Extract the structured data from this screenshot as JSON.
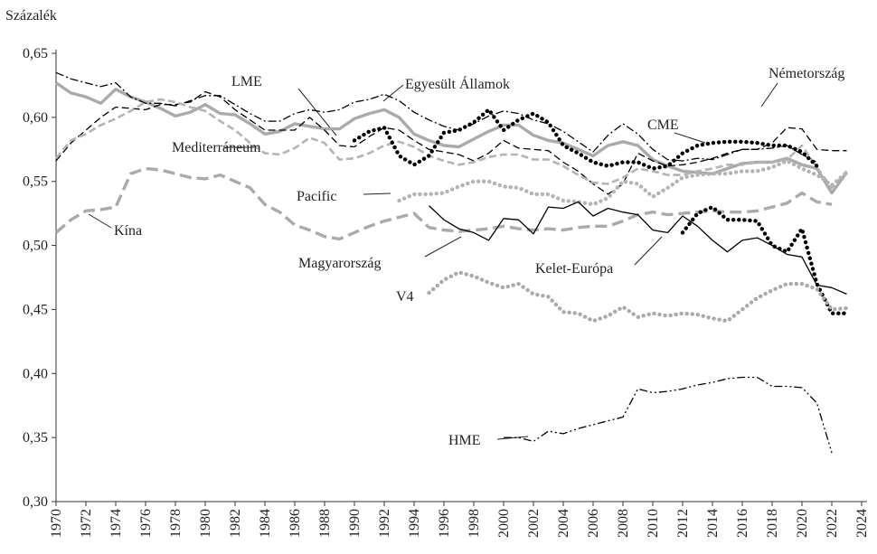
{
  "chart_data": {
    "type": "line",
    "y_label": "Százalék",
    "xlim": [
      1970,
      2024
    ],
    "ylim": [
      0.3,
      0.65
    ],
    "xticks": [
      1970,
      1972,
      1974,
      1976,
      1978,
      1980,
      1982,
      1984,
      1986,
      1988,
      1990,
      1992,
      1994,
      1996,
      1998,
      2000,
      2002,
      2004,
      2006,
      2008,
      2010,
      2012,
      2014,
      2016,
      2018,
      2020,
      2022,
      2024
    ],
    "yticks": [
      {
        "value": 0.3,
        "label": "0,30"
      },
      {
        "value": 0.35,
        "label": "0,35"
      },
      {
        "value": 0.4,
        "label": "0,40"
      },
      {
        "value": 0.45,
        "label": "0,45"
      },
      {
        "value": 0.5,
        "label": "0,50"
      },
      {
        "value": 0.55,
        "label": "0,55"
      },
      {
        "value": 0.6,
        "label": "0,60"
      },
      {
        "value": 0.65,
        "label": "0,65"
      }
    ],
    "x": [
      1970,
      1971,
      1972,
      1973,
      1974,
      1975,
      1976,
      1977,
      1978,
      1979,
      1980,
      1981,
      1982,
      1983,
      1984,
      1985,
      1986,
      1987,
      1988,
      1989,
      1990,
      1991,
      1992,
      1993,
      1994,
      1995,
      1996,
      1997,
      1998,
      1999,
      2000,
      2001,
      2002,
      2003,
      2004,
      2005,
      2006,
      2007,
      2008,
      2009,
      2010,
      2011,
      2012,
      2013,
      2014,
      2015,
      2016,
      2017,
      2018,
      2019,
      2020,
      2021,
      2022,
      2023
    ],
    "series": [
      {
        "name": "LME",
        "color": "#aaaaaa",
        "linestyle": "solid",
        "weight": "thick",
        "values": [
          0.627,
          0.619,
          0.616,
          0.611,
          0.622,
          0.616,
          0.612,
          0.607,
          0.601,
          0.604,
          0.61,
          0.603,
          0.602,
          0.595,
          0.587,
          0.589,
          0.595,
          0.593,
          0.591,
          0.591,
          0.599,
          0.603,
          0.606,
          0.6,
          0.587,
          0.582,
          0.578,
          0.577,
          0.583,
          0.589,
          0.594,
          0.594,
          0.586,
          0.582,
          0.58,
          0.575,
          0.57,
          0.578,
          0.581,
          0.578,
          0.567,
          0.562,
          0.558,
          0.557,
          0.556,
          0.56,
          0.564,
          0.565,
          0.565,
          0.568,
          0.563,
          0.56,
          0.541,
          0.557
        ]
      },
      {
        "name": "Egyesült Államok",
        "color": "#000000",
        "linestyle": "dashdot",
        "weight": "thin",
        "values": [
          0.635,
          0.63,
          0.627,
          0.624,
          0.627,
          0.616,
          0.611,
          0.611,
          0.609,
          0.613,
          0.617,
          0.617,
          0.61,
          0.603,
          0.597,
          0.597,
          0.603,
          0.606,
          0.604,
          0.606,
          0.612,
          0.614,
          0.618,
          0.613,
          0.604,
          0.598,
          0.593,
          0.59,
          0.595,
          0.601,
          0.605,
          0.603,
          0.598,
          0.595,
          0.589,
          0.581,
          0.573,
          0.586,
          0.595,
          0.587,
          0.575,
          0.567,
          0.566,
          0.568,
          0.567,
          0.571,
          0.575,
          0.575,
          0.576,
          0.578,
          0.571,
          0.565,
          null,
          null
        ]
      },
      {
        "name": "Németország",
        "color": "#000000",
        "linestyle": "dashed",
        "weight": "thin",
        "values": [
          0.566,
          0.58,
          0.59,
          0.6,
          0.608,
          0.607,
          0.606,
          0.61,
          0.61,
          0.612,
          0.62,
          0.616,
          0.606,
          0.598,
          0.59,
          0.59,
          0.59,
          0.6,
          0.59,
          0.578,
          0.577,
          0.585,
          0.592,
          0.59,
          0.582,
          0.575,
          0.573,
          0.571,
          0.566,
          0.572,
          0.582,
          0.576,
          0.575,
          0.574,
          0.565,
          0.558,
          0.548,
          0.54,
          0.548,
          0.572,
          0.566,
          0.562,
          0.563,
          0.565,
          0.568,
          0.572,
          0.575,
          0.575,
          0.58,
          0.592,
          0.591,
          0.575,
          0.574,
          0.574
        ]
      },
      {
        "name": "CME",
        "color": "#b4b4b4",
        "linestyle": "dashed",
        "weight": "medium",
        "values": [
          0.568,
          0.582,
          0.587,
          0.594,
          0.599,
          0.605,
          0.612,
          0.614,
          0.612,
          0.608,
          0.605,
          0.597,
          0.59,
          0.58,
          0.572,
          0.571,
          0.576,
          0.584,
          0.58,
          0.567,
          0.568,
          0.572,
          0.578,
          0.581,
          0.577,
          0.57,
          0.566,
          0.563,
          0.565,
          0.569,
          0.571,
          0.571,
          0.567,
          0.567,
          0.562,
          0.555,
          0.549,
          0.548,
          0.553,
          0.56,
          0.558,
          0.555,
          0.555,
          0.558,
          0.56,
          0.563,
          0.563,
          0.565,
          0.565,
          0.567,
          0.578,
          0.561,
          0.545,
          0.558
        ]
      },
      {
        "name": "Mediterráneum",
        "color": "#aaaaaa",
        "linestyle": "longdash",
        "weight": "thick",
        "values": [
          0.51,
          0.52,
          0.527,
          0.528,
          0.53,
          0.556,
          0.56,
          0.559,
          0.556,
          0.553,
          0.552,
          0.555,
          0.55,
          0.545,
          0.532,
          0.526,
          0.516,
          0.512,
          0.507,
          0.505,
          0.51,
          0.515,
          0.519,
          0.522,
          0.525,
          0.514,
          0.512,
          0.511,
          0.512,
          0.513,
          0.515,
          0.513,
          0.512,
          0.513,
          0.512,
          0.514,
          0.515,
          0.515,
          0.519,
          0.524,
          0.526,
          0.524,
          0.525,
          0.526,
          0.527,
          0.526,
          0.526,
          0.527,
          0.53,
          0.533,
          0.541,
          0.534,
          0.532,
          null
        ]
      },
      {
        "name": "Pacific",
        "color": "#b4b4b4",
        "linestyle": "dotted",
        "weight": "thick",
        "values": [
          null,
          null,
          null,
          null,
          null,
          null,
          null,
          null,
          null,
          null,
          null,
          null,
          null,
          null,
          null,
          null,
          null,
          null,
          null,
          null,
          null,
          null,
          null,
          0.535,
          0.54,
          0.54,
          0.541,
          0.546,
          0.55,
          0.55,
          0.546,
          0.545,
          0.54,
          0.54,
          0.535,
          0.534,
          0.532,
          0.537,
          0.55,
          0.548,
          0.538,
          0.545,
          0.553,
          0.555,
          0.556,
          0.556,
          0.558,
          0.558,
          0.561,
          0.566,
          0.56,
          0.555,
          0.547,
          0.557
        ]
      },
      {
        "name": "Kína",
        "color": "#000000",
        "linestyle": "dotted",
        "weight": "thick",
        "values": [
          null,
          null,
          null,
          null,
          null,
          null,
          null,
          null,
          null,
          null,
          null,
          null,
          null,
          null,
          null,
          null,
          null,
          null,
          null,
          null,
          0.582,
          0.589,
          0.592,
          0.57,
          0.563,
          0.57,
          0.588,
          0.59,
          0.596,
          0.606,
          0.59,
          0.598,
          0.603,
          0.596,
          0.578,
          0.572,
          0.565,
          0.562,
          0.565,
          0.565,
          0.56,
          0.562,
          0.572,
          0.578,
          0.58,
          0.581,
          0.581,
          0.58,
          0.578,
          0.578,
          0.573,
          0.562,
          null,
          null
        ]
      },
      {
        "name": "Magyarország",
        "color": "#000000",
        "linestyle": "solid",
        "weight": "thin",
        "values": [
          null,
          null,
          null,
          null,
          null,
          null,
          null,
          null,
          null,
          null,
          null,
          null,
          null,
          null,
          null,
          null,
          null,
          null,
          null,
          null,
          null,
          null,
          null,
          null,
          null,
          0.531,
          0.52,
          0.513,
          0.51,
          0.504,
          0.521,
          0.52,
          0.509,
          0.53,
          0.529,
          0.534,
          0.523,
          0.529,
          0.526,
          0.524,
          0.512,
          0.51,
          0.523,
          0.515,
          0.504,
          0.495,
          0.504,
          0.506,
          0.5,
          0.493,
          0.491,
          0.469,
          0.467,
          0.462
        ]
      },
      {
        "name": "Kelet-Európa",
        "color": "#000000",
        "linestyle": "dotted",
        "weight": "thick",
        "values": [
          null,
          null,
          null,
          null,
          null,
          null,
          null,
          null,
          null,
          null,
          null,
          null,
          null,
          null,
          null,
          null,
          null,
          null,
          null,
          null,
          null,
          null,
          null,
          null,
          null,
          null,
          null,
          null,
          null,
          null,
          null,
          null,
          null,
          null,
          null,
          null,
          null,
          null,
          null,
          null,
          null,
          null,
          0.51,
          0.525,
          0.53,
          0.52,
          0.52,
          0.519,
          0.5,
          0.495,
          0.513,
          0.47,
          0.447,
          0.447
        ]
      },
      {
        "name": "V4",
        "color": "#aaaaaa",
        "linestyle": "dotted",
        "weight": "thick",
        "values": [
          null,
          null,
          null,
          null,
          null,
          null,
          null,
          null,
          null,
          null,
          null,
          null,
          null,
          null,
          null,
          null,
          null,
          null,
          null,
          null,
          null,
          null,
          null,
          null,
          null,
          0.463,
          0.473,
          0.479,
          0.476,
          0.471,
          0.467,
          0.47,
          0.462,
          0.46,
          0.448,
          0.447,
          0.441,
          0.445,
          0.452,
          0.444,
          0.447,
          0.445,
          0.447,
          0.446,
          0.443,
          0.441,
          0.45,
          0.459,
          0.465,
          0.47,
          0.47,
          0.466,
          0.45,
          0.451
        ]
      },
      {
        "name": "HME",
        "color": "#000000",
        "linestyle": "dashdotdot",
        "weight": "thin",
        "values": [
          null,
          null,
          null,
          null,
          null,
          null,
          null,
          null,
          null,
          null,
          null,
          null,
          null,
          null,
          null,
          null,
          null,
          null,
          null,
          null,
          null,
          null,
          null,
          null,
          null,
          null,
          null,
          null,
          null,
          null,
          0.35,
          0.35,
          0.347,
          0.355,
          0.353,
          0.357,
          0.36,
          0.363,
          0.366,
          0.388,
          0.385,
          0.386,
          0.388,
          0.391,
          0.393,
          0.396,
          0.397,
          0.397,
          0.39,
          0.39,
          0.389,
          0.377,
          0.338,
          null
        ]
      }
    ]
  }
}
